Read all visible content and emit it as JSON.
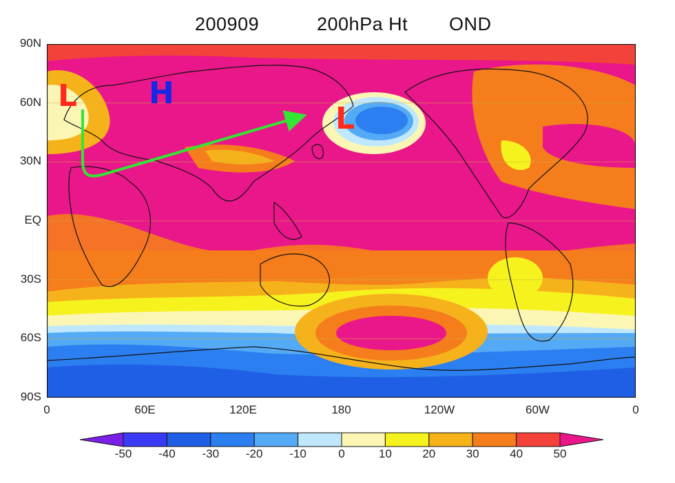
{
  "title": {
    "date": "200909",
    "field": "200hPa Ht",
    "season": "OND"
  },
  "axes": {
    "y_ticks": [
      "90N",
      "60N",
      "30N",
      "EQ",
      "30S",
      "60S",
      "90S"
    ],
    "x_ticks": [
      "0",
      "60E",
      "120E",
      "180",
      "120W",
      "60W",
      "0"
    ]
  },
  "colorbar": {
    "labels": [
      "-50",
      "-40",
      "-30",
      "-20",
      "-10",
      "0",
      "10",
      "20",
      "30",
      "40",
      "50"
    ],
    "colors": [
      "#7a1fe6",
      "#3a3af5",
      "#1f5fe6",
      "#2c7ff0",
      "#54aaf5",
      "#bfe8ff",
      "#fbf6b4",
      "#f6f21e",
      "#f6b21a",
      "#f57d1c",
      "#f2423a",
      "#e9178a"
    ]
  },
  "markers": [
    {
      "label": "L",
      "color": "#ff2a1a"
    },
    {
      "label": "H",
      "color": "#1428e6"
    },
    {
      "label": "L",
      "color": "#ff2a1a"
    }
  ],
  "arrow_color": "#33e633",
  "chart_data": {
    "type": "heatmap",
    "title": "200909        200hPa Ht    OND",
    "xlabel": "",
    "ylabel": "",
    "x_range": [
      0,
      360
    ],
    "y_range": [
      -90,
      90
    ],
    "levels": [
      -50,
      -40,
      -30,
      -20,
      -10,
      0,
      10,
      20,
      30,
      40,
      50
    ],
    "grid": true
  }
}
